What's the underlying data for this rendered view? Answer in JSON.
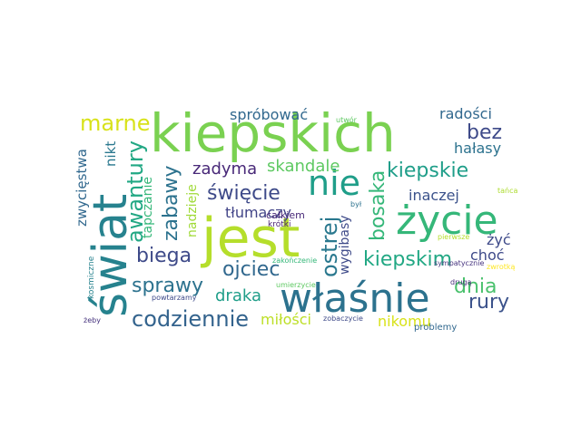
{
  "words": [
    {
      "text": "kiepskich",
      "color": "#7ad151"
    },
    {
      "text": "jest",
      "color": "#b5de2b"
    },
    {
      "text": "świat",
      "color": "#26828e"
    },
    {
      "text": "właśnie",
      "color": "#2c728e"
    },
    {
      "text": "życie",
      "color": "#35b779"
    },
    {
      "text": "nie",
      "color": "#1f9e89"
    },
    {
      "text": "kiepskie",
      "color": "#1f9e89"
    },
    {
      "text": "kiepskim",
      "color": "#22a884"
    },
    {
      "text": "codziennie",
      "color": "#33638d"
    },
    {
      "text": "marne",
      "color": "#d8e219"
    },
    {
      "text": "awantury",
      "color": "#22a884"
    },
    {
      "text": "ostrej",
      "color": "#2a788e"
    },
    {
      "text": "bosaka",
      "color": "#35b779"
    },
    {
      "text": "dnia",
      "color": "#4ac16d"
    },
    {
      "text": "rury",
      "color": "#3b528b"
    },
    {
      "text": "bez",
      "color": "#3e4a89"
    },
    {
      "text": "hałasy",
      "color": "#2c728e"
    },
    {
      "text": "radości",
      "color": "#31688e"
    },
    {
      "text": "spróbować",
      "color": "#31688e"
    },
    {
      "text": "zabawy",
      "color": "#2c728e"
    },
    {
      "text": "zadyma",
      "color": "#482878"
    },
    {
      "text": "skandale",
      "color": "#5ec962"
    },
    {
      "text": "święcie",
      "color": "#3e4a89"
    },
    {
      "text": "tłumaczy",
      "color": "#414487"
    },
    {
      "text": "biega",
      "color": "#3e4a89"
    },
    {
      "text": "ojciec",
      "color": "#31688e"
    },
    {
      "text": "sprawy",
      "color": "#2c728e"
    },
    {
      "text": "draka",
      "color": "#1f9e89"
    },
    {
      "text": "miłości",
      "color": "#bddf26"
    },
    {
      "text": "nikomu",
      "color": "#d8e219"
    },
    {
      "text": "inaczej",
      "color": "#3b528b"
    },
    {
      "text": "żyć",
      "color": "#3e4a89"
    },
    {
      "text": "choć",
      "color": "#3e4a89"
    },
    {
      "text": "zwycięstwa",
      "color": "#31688e"
    },
    {
      "text": "nikt",
      "color": "#2a788e"
    },
    {
      "text": "tapczanie",
      "color": "#35b779"
    },
    {
      "text": "nadzieje",
      "color": "#a0da39"
    },
    {
      "text": "wygibasy",
      "color": "#3e4a89"
    },
    {
      "text": "całkiem",
      "color": "#482878"
    },
    {
      "text": "krótki",
      "color": "#481f70"
    },
    {
      "text": "był",
      "color": "#2c728e"
    },
    {
      "text": "utwór",
      "color": "#5ec962"
    },
    {
      "text": "tańca",
      "color": "#addc30"
    },
    {
      "text": "pierwsze",
      "color": "#b5de2b"
    },
    {
      "text": "zakończenie",
      "color": "#35b779"
    },
    {
      "text": "umierzycie",
      "color": "#5ec962"
    },
    {
      "text": "sympatycznie",
      "color": "#46337e"
    },
    {
      "text": "zwrotką",
      "color": "#fde725"
    },
    {
      "text": "kosmiczne",
      "color": "#26828e"
    },
    {
      "text": "powtarzamy",
      "color": "#3e4a89"
    },
    {
      "text": "zobaczycie",
      "color": "#3e4a89"
    },
    {
      "text": "drugą",
      "color": "#472d7b"
    },
    {
      "text": "problemy",
      "color": "#31688e"
    },
    {
      "text": "żeby",
      "color": "#46337e"
    }
  ]
}
